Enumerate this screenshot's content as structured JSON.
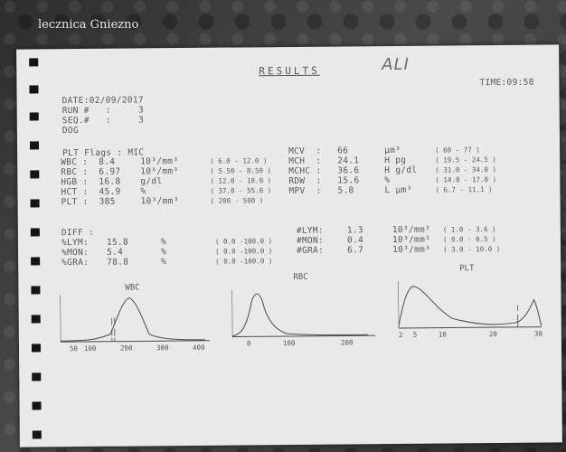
{
  "watermark": "lecznica Gniezno",
  "header": {
    "title": "RESULTS",
    "name": "ALI",
    "time": "TIME:09:58"
  },
  "meta": {
    "date": "DATE:02/09/2017",
    "run": "RUN #   :     3",
    "seq": "SEQ.#   :     3",
    "species": "DOG"
  },
  "flags": "PLT Flags : MIC",
  "left_params": [
    {
      "name": "WBC :",
      "value": "8.4",
      "unit": "10³/mm³",
      "range": "( 6.0 - 12.0 )"
    },
    {
      "name": "RBC :",
      "value": "6.97",
      "unit": "10⁶/mm³",
      "range": "( 5.50 - 8.50 )"
    },
    {
      "name": "HGB :",
      "value": "16.8",
      "unit": "g/dl",
      "range": "( 12.0 - 18.0 )"
    },
    {
      "name": "HCT :",
      "value": "45.9",
      "unit": "%",
      "range": "( 37.0 - 55.0 )"
    },
    {
      "name": "PLT :",
      "value": "385",
      "unit": "10³/mm³",
      "range": "( 200 - 500 )"
    }
  ],
  "right_params": [
    {
      "name": "MCV  :",
      "value": "66",
      "unit": "µm³",
      "range": "( 60 - 77 )"
    },
    {
      "name": "MCH  :",
      "value": "24.1",
      "unit": "H pg",
      "range": "( 19.5 - 24.5 )"
    },
    {
      "name": "MCHC :",
      "value": "36.6",
      "unit": "H g/dl",
      "range": "( 31.0 - 34.0 )"
    },
    {
      "name": "RDW  :",
      "value": "15.6",
      "unit": "%",
      "range": "( 14.0 - 17.0 )"
    },
    {
      "name": "MPV  :",
      "value": "5.8",
      "unit": "L µm³",
      "range": "( 6.7 - 11.1 )"
    }
  ],
  "diff_label": "DIFF :",
  "diff_left": [
    {
      "name": "%LYM:",
      "value": "15.8",
      "unit": "%",
      "range": "( 0.0 -100.0 )"
    },
    {
      "name": "%MON:",
      "value": "5.4",
      "unit": "%",
      "range": "( 0.0 -100.0 )"
    },
    {
      "name": "%GRA:",
      "value": "78.8",
      "unit": "%",
      "range": "( 0.0 -100.0 )"
    }
  ],
  "diff_right": [
    {
      "name": "#LYM:",
      "value": "1.3",
      "unit": "10³/mm³",
      "range": "( 1.0 - 3.6 )"
    },
    {
      "name": "#MON:",
      "value": "0.4",
      "unit": "10³/mm³",
      "range": "( 0.0 - 0.5 )"
    },
    {
      "name": "#GRA:",
      "value": "6.7",
      "unit": "10³/mm³",
      "range": "( 3.0 - 10.0 )"
    }
  ],
  "histograms": {
    "wbc": {
      "title": "WBC",
      "ticks": [
        "50",
        "100",
        "200",
        "300",
        "400"
      ]
    },
    "rbc": {
      "title": "RBC",
      "ticks": [
        "0",
        "100",
        "200"
      ]
    },
    "plt": {
      "title": "PLT",
      "ticks": [
        "2",
        "5",
        "10",
        "20",
        "30"
      ]
    }
  }
}
